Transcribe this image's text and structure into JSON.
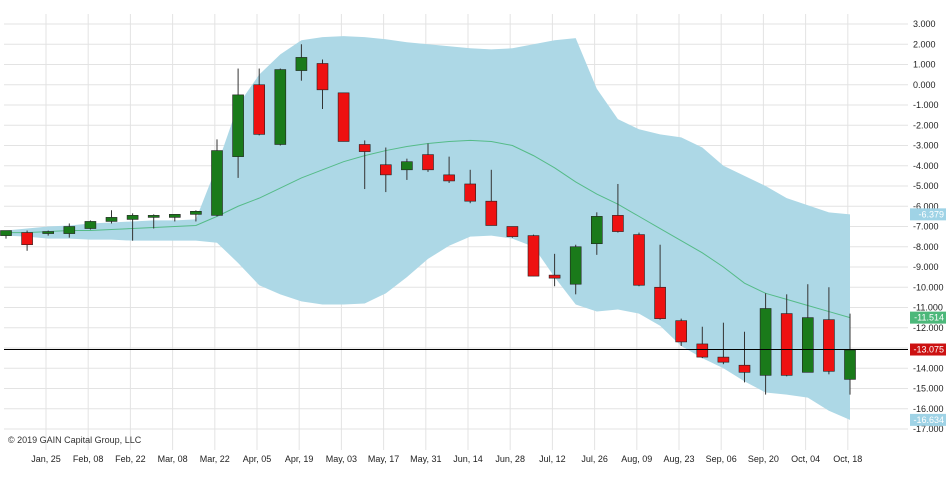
{
  "copyright": "© 2019 GAIN Capital Group, LLC",
  "chart_data": {
    "type": "candlestick",
    "grid": true,
    "ylim": [
      -17.5,
      3.5
    ],
    "y_ticks": [
      "3.000",
      "2.000",
      "1.000",
      "0.000",
      "-1.000",
      "-2.000",
      "-3.000",
      "-4.000",
      "-5.000",
      "-6.000",
      "-7.000",
      "-8.000",
      "-9.000",
      "-10.000",
      "-11.000",
      "-12.000",
      "-13.000",
      "-14.000",
      "-15.000",
      "-16.000",
      "-17.000"
    ],
    "y_tick_values": [
      3,
      2,
      1,
      0,
      -1,
      -2,
      -3,
      -4,
      -5,
      -6,
      -7,
      -8,
      -9,
      -10,
      -11,
      -12,
      -13,
      -14,
      -15,
      -16,
      -17
    ],
    "x_labels": [
      "Jan, 25",
      "Feb, 08",
      "Feb, 22",
      "Mar, 08",
      "Mar, 22",
      "Apr, 05",
      "Apr, 19",
      "May, 03",
      "May, 17",
      "May, 31",
      "Jun, 14",
      "Jun, 28",
      "Jul, 12",
      "Jul, 26",
      "Aug, 09",
      "Aug, 23",
      "Sep, 06",
      "Sep, 20",
      "Oct, 04",
      "Oct, 18"
    ],
    "colors": {
      "up": "#1a7a1a",
      "down": "#ee1111",
      "band": "#add8e6",
      "middle": "#55bb88",
      "current": "#000000"
    },
    "candles": [
      {
        "o": -7.45,
        "h": -7.25,
        "l": -7.6,
        "c": -7.2
      },
      {
        "o": -7.3,
        "h": -7.2,
        "l": -8.2,
        "c": -7.9
      },
      {
        "o": -7.3,
        "h": -7.2,
        "l": -7.45,
        "c": -7.25
      },
      {
        "o": -7.35,
        "h": -6.85,
        "l": -7.55,
        "c": -7.0
      },
      {
        "o": -7.1,
        "h": -6.7,
        "l": -7.15,
        "c": -6.75
      },
      {
        "o": -6.75,
        "h": -6.2,
        "l": -6.85,
        "c": -6.55
      },
      {
        "o": -6.65,
        "h": -6.35,
        "l": -7.7,
        "c": -6.45
      },
      {
        "o": -6.55,
        "h": -6.4,
        "l": -7.1,
        "c": -6.45
      },
      {
        "o": -6.55,
        "h": -6.45,
        "l": -6.75,
        "c": -6.4
      },
      {
        "o": -6.4,
        "h": -6.2,
        "l": -6.75,
        "c": -6.25
      },
      {
        "o": -6.45,
        "h": -2.7,
        "l": -6.5,
        "c": -3.25
      },
      {
        "o": -3.55,
        "h": 0.8,
        "l": -4.6,
        "c": -0.5
      },
      {
        "o": 0.0,
        "h": 0.8,
        "l": -2.5,
        "c": -2.45
      },
      {
        "o": -2.95,
        "h": 0.8,
        "l": -3.0,
        "c": 0.75
      },
      {
        "o": 0.7,
        "h": 2.0,
        "l": 0.2,
        "c": 1.35
      },
      {
        "o": 1.05,
        "h": 1.25,
        "l": -1.2,
        "c": -0.25
      },
      {
        "o": -0.4,
        "h": -0.4,
        "l": -2.8,
        "c": -2.8
      },
      {
        "o": -2.95,
        "h": -2.75,
        "l": -5.15,
        "c": -3.3
      },
      {
        "o": -3.95,
        "h": -3.1,
        "l": -5.3,
        "c": -4.45
      },
      {
        "o": -4.2,
        "h": -3.65,
        "l": -4.7,
        "c": -3.8
      },
      {
        "o": -3.45,
        "h": -2.9,
        "l": -4.3,
        "c": -4.2
      },
      {
        "o": -4.45,
        "h": -3.55,
        "l": -4.85,
        "c": -4.75
      },
      {
        "o": -4.9,
        "h": -4.2,
        "l": -5.85,
        "c": -5.75
      },
      {
        "o": -5.75,
        "h": -4.2,
        "l": -6.95,
        "c": -6.95
      },
      {
        "o": -7.0,
        "h": -7.0,
        "l": -7.55,
        "c": -7.5
      },
      {
        "o": -7.45,
        "h": -7.4,
        "l": -9.45,
        "c": -9.45
      },
      {
        "o": -9.4,
        "h": -8.35,
        "l": -9.95,
        "c": -9.55
      },
      {
        "o": -9.85,
        "h": -7.9,
        "l": -10.35,
        "c": -8.0
      },
      {
        "o": -7.85,
        "h": -6.3,
        "l": -8.4,
        "c": -6.5
      },
      {
        "o": -6.45,
        "h": -4.9,
        "l": -7.3,
        "c": -7.25
      },
      {
        "o": -7.4,
        "h": -7.3,
        "l": -9.95,
        "c": -9.9
      },
      {
        "o": -10.0,
        "h": -7.9,
        "l": -11.6,
        "c": -11.55
      },
      {
        "o": -11.65,
        "h": -11.55,
        "l": -12.9,
        "c": -12.7
      },
      {
        "o": -12.8,
        "h": -11.95,
        "l": -13.5,
        "c": -13.45
      },
      {
        "o": -13.45,
        "h": -11.75,
        "l": -13.8,
        "c": -13.7
      },
      {
        "o": -13.85,
        "h": -12.2,
        "l": -14.7,
        "c": -14.2
      },
      {
        "o": -14.35,
        "h": -10.3,
        "l": -15.3,
        "c": -11.05
      },
      {
        "o": -11.3,
        "h": -10.35,
        "l": -14.4,
        "c": -14.35
      },
      {
        "o": -14.2,
        "h": -9.85,
        "l": -14.2,
        "c": -11.5
      },
      {
        "o": -11.6,
        "h": -10.0,
        "l": -14.3,
        "c": -14.15
      },
      {
        "o": -14.55,
        "h": -11.3,
        "l": -15.3,
        "c": -13.1
      }
    ],
    "band_upper": [
      -7.2,
      -7.1,
      -7.0,
      -6.95,
      -6.85,
      -6.8,
      -6.75,
      -6.7,
      -6.7,
      -6.65,
      -4.0,
      -1.0,
      0.5,
      1.5,
      2.2,
      2.35,
      2.4,
      2.35,
      2.25,
      2.1,
      2.0,
      1.9,
      1.8,
      1.75,
      1.8,
      2.0,
      2.2,
      2.3,
      -0.2,
      -1.7,
      -2.2,
      -2.45,
      -2.6,
      -3.1,
      -4.0,
      -4.5,
      -5.0,
      -5.6,
      -5.95,
      -6.3,
      -6.4
    ],
    "band_lower": [
      -7.45,
      -7.5,
      -7.6,
      -7.6,
      -7.65,
      -7.65,
      -7.7,
      -7.7,
      -7.7,
      -7.7,
      -7.8,
      -8.8,
      -9.9,
      -10.35,
      -10.7,
      -10.85,
      -10.85,
      -10.8,
      -10.3,
      -9.5,
      -8.6,
      -7.95,
      -7.5,
      -7.45,
      -7.6,
      -8.0,
      -9.5,
      -10.85,
      -11.2,
      -11.1,
      -11.3,
      -11.9,
      -12.9,
      -13.5,
      -14.0,
      -14.65,
      -15.2,
      -15.3,
      -15.45,
      -16.1,
      -16.55
    ],
    "band_middle": [
      -7.3,
      -7.3,
      -7.25,
      -7.2,
      -7.2,
      -7.15,
      -7.1,
      -7.05,
      -7.0,
      -6.95,
      -6.5,
      -6.0,
      -5.6,
      -5.1,
      -4.6,
      -4.2,
      -3.8,
      -3.5,
      -3.25,
      -3.05,
      -2.9,
      -2.8,
      -2.75,
      -2.8,
      -3.0,
      -3.5,
      -4.1,
      -4.8,
      -5.4,
      -5.9,
      -6.5,
      -7.1,
      -7.7,
      -8.3,
      -9.0,
      -9.8,
      -10.3,
      -10.6,
      -10.9,
      -11.2,
      -11.5
    ],
    "band_upper_label": "-6.379",
    "band_middle_label": "-11.514",
    "band_lower_label": "-16.634",
    "current_value": -13.075,
    "current_label": "-13.075"
  }
}
